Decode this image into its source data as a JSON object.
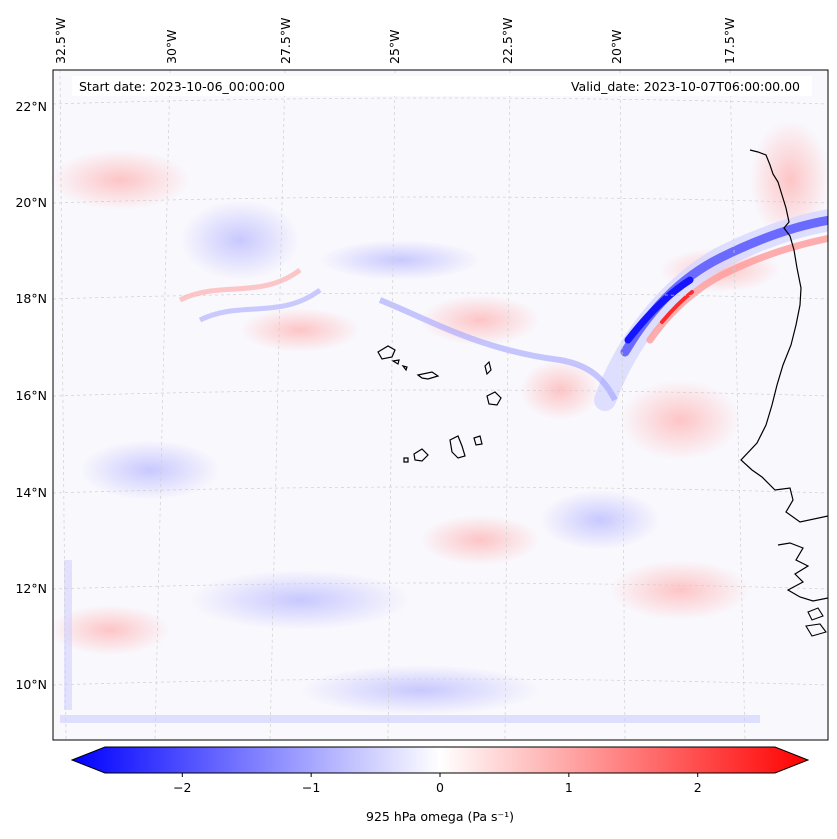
{
  "map": {
    "start_date": "Start date: 2023-10-06_00:00:00",
    "valid_date": "Valid_date: 2023-10-07T06:00:00.00",
    "lon_labels": [
      "32.5°W",
      "30°W",
      "27.5°W",
      "25°W",
      "22.5°W",
      "20°W",
      "17.5°W"
    ],
    "lat_labels": [
      "22°N",
      "20°N",
      "18°N",
      "16°N",
      "14°N",
      "12°N",
      "10°N"
    ],
    "colors": {
      "negative": "#0000ff",
      "zero": "#ffffff",
      "positive": "#ff0000",
      "coast": "#000000"
    }
  },
  "colorbar": {
    "label": "925 hPa omega (Pa s⁻¹)",
    "ticks": [
      "−2",
      "−1",
      "0",
      "1",
      "2"
    ],
    "tick_values": [
      -2,
      -1,
      0,
      1,
      2
    ],
    "range": [
      -2.6,
      2.6
    ]
  }
}
